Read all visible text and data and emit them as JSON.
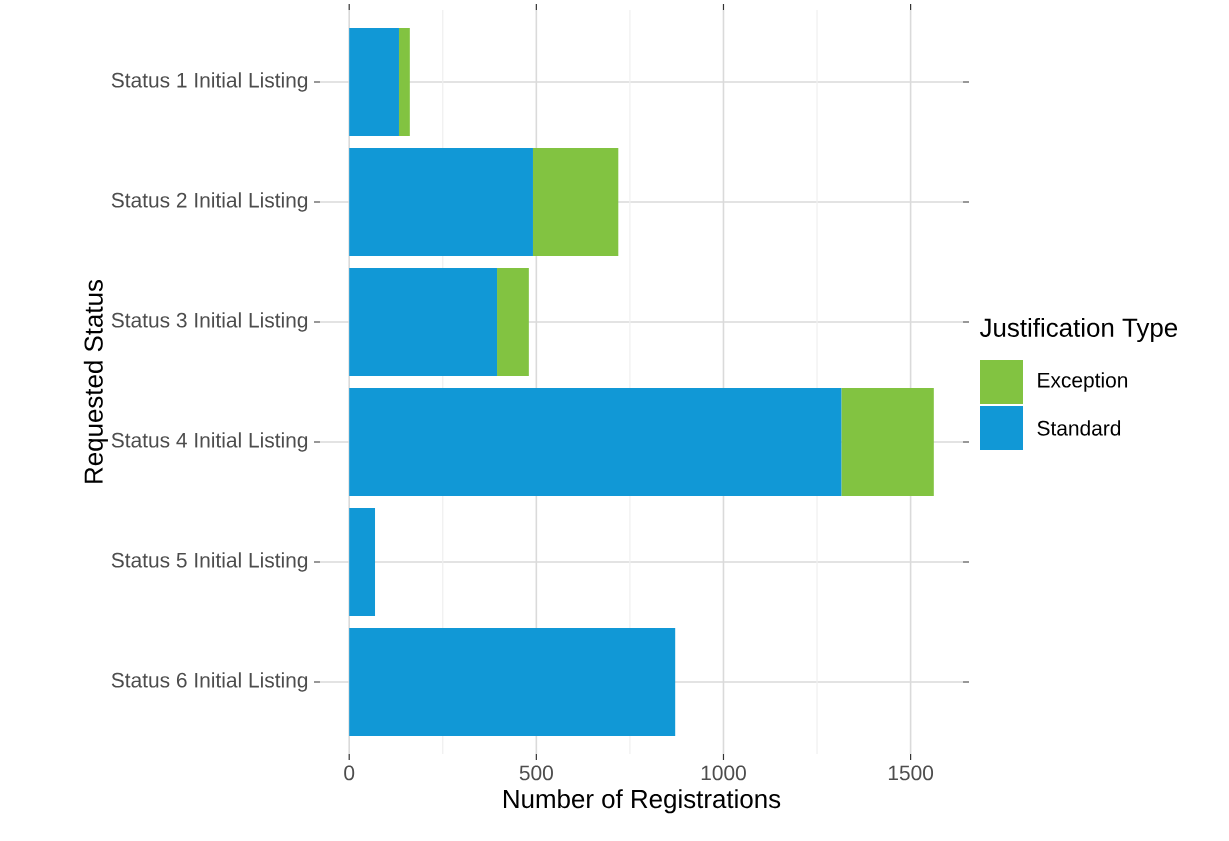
{
  "chart_data": {
    "type": "bar",
    "orientation": "horizontal",
    "stacked": true,
    "xlabel": "Number of Registrations",
    "ylabel": "Requested Status",
    "legend_title": "Justification Type",
    "categories": [
      "Status 1 Initial Listing",
      "Status 2 Initial Listing",
      "Status 3 Initial Listing",
      "Status 4 Initial Listing",
      "Status 5 Initial Listing",
      "Status 6 Initial Listing"
    ],
    "series": [
      {
        "name": "Standard",
        "color": "#1198d6",
        "values": [
          133,
          491,
          395,
          1315,
          69,
          871
        ]
      },
      {
        "name": "Exception",
        "color": "#82c341",
        "values": [
          29,
          228,
          85,
          247,
          null,
          null
        ]
      }
    ],
    "xlim": [
      -78,
      1640
    ],
    "xticks": [
      0,
      {
        "value": 250,
        "label": null
      },
      500,
      {
        "value": 750,
        "label": null
      },
      1000,
      {
        "value": 1250,
        "label": null
      },
      1500
    ],
    "grid": true,
    "legend": "right"
  }
}
